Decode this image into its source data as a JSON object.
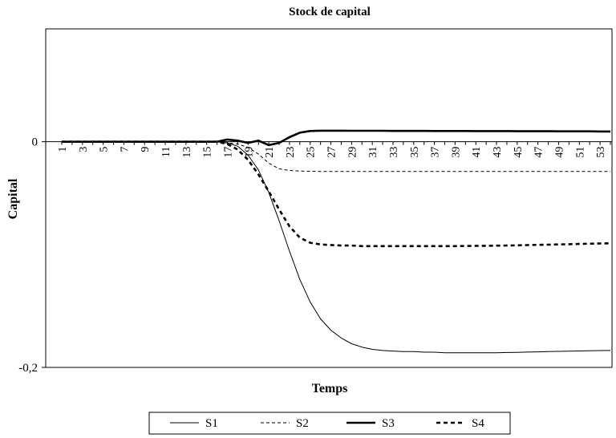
{
  "chart_data": {
    "type": "line",
    "title": "Stock de capital",
    "xlabel": "Temps",
    "ylabel": "Capital",
    "ylim": [
      -0.2,
      0.1
    ],
    "y_ticks": [
      {
        "value": 0,
        "label": "0"
      },
      {
        "value": -0.2,
        "label": "-0,2"
      }
    ],
    "x": [
      1,
      2,
      3,
      4,
      5,
      6,
      7,
      8,
      9,
      10,
      11,
      12,
      13,
      14,
      15,
      16,
      17,
      18,
      19,
      20,
      21,
      22,
      23,
      24,
      25,
      26,
      27,
      28,
      29,
      30,
      31,
      32,
      33,
      34,
      35,
      36,
      37,
      38,
      39,
      40,
      41,
      42,
      43,
      44,
      45,
      46,
      47,
      48,
      49,
      50,
      51,
      52,
      53,
      54
    ],
    "x_tick_labels": [
      "1",
      "3",
      "5",
      "7",
      "9",
      "11",
      "13",
      "15",
      "17",
      "19",
      "21",
      "23",
      "25",
      "27",
      "29",
      "31",
      "33",
      "35",
      "37",
      "39",
      "41",
      "43",
      "45",
      "47",
      "49",
      "51",
      "53"
    ],
    "grid": false,
    "legend_position": "bottom",
    "series": [
      {
        "name": "S1",
        "style": "thin-solid",
        "values": [
          0,
          0,
          0,
          0,
          0,
          0,
          0,
          0,
          0,
          0,
          0,
          0,
          0,
          0,
          0,
          0,
          -0.001,
          -0.004,
          -0.012,
          -0.025,
          -0.045,
          -0.07,
          -0.097,
          -0.122,
          -0.142,
          -0.157,
          -0.167,
          -0.174,
          -0.179,
          -0.182,
          -0.184,
          -0.185,
          -0.1855,
          -0.186,
          -0.186,
          -0.1865,
          -0.1865,
          -0.187,
          -0.187,
          -0.187,
          -0.187,
          -0.187,
          -0.187,
          -0.1868,
          -0.1866,
          -0.1864,
          -0.1862,
          -0.186,
          -0.1858,
          -0.1856,
          -0.1854,
          -0.1852,
          -0.1851,
          -0.185
        ]
      },
      {
        "name": "S2",
        "style": "thin-dashed",
        "values": [
          0,
          0,
          0,
          0,
          0,
          0,
          0,
          0,
          0,
          0,
          0,
          0,
          0,
          0,
          0,
          0,
          -0.001,
          -0.002,
          -0.005,
          -0.011,
          -0.019,
          -0.024,
          -0.0255,
          -0.026,
          -0.0262,
          -0.0263,
          -0.0263,
          -0.0263,
          -0.0263,
          -0.0263,
          -0.0263,
          -0.0263,
          -0.0263,
          -0.0263,
          -0.0263,
          -0.0263,
          -0.0263,
          -0.0263,
          -0.0263,
          -0.0263,
          -0.0263,
          -0.0263,
          -0.0263,
          -0.0263,
          -0.0263,
          -0.0263,
          -0.0263,
          -0.0263,
          -0.0263,
          -0.0263,
          -0.0263,
          -0.0263,
          -0.0263,
          -0.0263
        ]
      },
      {
        "name": "S3",
        "style": "thick-solid",
        "values": [
          0,
          0,
          0,
          0,
          0,
          0,
          0,
          0,
          0,
          0,
          0,
          0,
          0,
          0,
          0,
          0,
          0.002,
          0.001,
          -0.001,
          0.001,
          -0.003,
          -0.001,
          0.004,
          0.008,
          0.0095,
          0.0098,
          0.0098,
          0.0098,
          0.0097,
          0.0097,
          0.0097,
          0.0097,
          0.0096,
          0.0096,
          0.0096,
          0.0096,
          0.0095,
          0.0095,
          0.0095,
          0.0095,
          0.0094,
          0.0094,
          0.0094,
          0.0094,
          0.0093,
          0.0093,
          0.0093,
          0.0093,
          0.0092,
          0.0092,
          0.0092,
          0.0092,
          0.0091,
          0.0091
        ]
      },
      {
        "name": "S4",
        "style": "thick-dashed",
        "values": [
          0,
          0,
          0,
          0,
          0,
          0,
          0,
          0,
          0,
          0,
          0,
          0,
          0,
          0,
          0,
          0,
          -0.002,
          -0.007,
          -0.016,
          -0.029,
          -0.044,
          -0.06,
          -0.075,
          -0.085,
          -0.0895,
          -0.091,
          -0.0915,
          -0.092,
          -0.092,
          -0.0925,
          -0.0925,
          -0.0925,
          -0.0925,
          -0.0925,
          -0.0925,
          -0.0925,
          -0.0925,
          -0.0925,
          -0.0925,
          -0.0924,
          -0.0923,
          -0.0922,
          -0.0921,
          -0.092,
          -0.0918,
          -0.0916,
          -0.0914,
          -0.0912,
          -0.091,
          -0.0908,
          -0.0906,
          -0.0904,
          -0.0902,
          -0.09
        ]
      }
    ]
  }
}
